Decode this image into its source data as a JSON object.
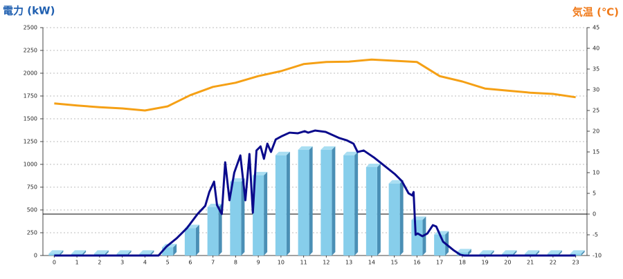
{
  "chart_data": {
    "type": "bar_line",
    "y_label": "電力 (kW)",
    "y2_label": "気温 (℃)",
    "categories": [
      "0",
      "1",
      "2",
      "3",
      "4",
      "5",
      "6",
      "7",
      "8",
      "9",
      "10",
      "11",
      "12",
      "13",
      "14",
      "15",
      "16",
      "17",
      "18",
      "19",
      "20",
      "21",
      "22",
      "23"
    ],
    "ylim": [
      0,
      2500
    ],
    "yticks": [
      0,
      250,
      500,
      750,
      1000,
      1250,
      1500,
      1750,
      2000,
      2250,
      2500
    ],
    "y2lim": [
      -10,
      45
    ],
    "y2ticks": [
      -10,
      -5,
      0,
      5,
      10,
      15,
      20,
      25,
      30,
      35,
      40,
      45
    ],
    "grid": true,
    "reference_line": {
      "axis": "y2",
      "value": 0,
      "color": "#000000"
    },
    "bars": {
      "color": "#87ceeb",
      "side_color": "#4a8fb5",
      "top_color": "#a9def2",
      "values": [
        20,
        20,
        20,
        20,
        20,
        90,
        300,
        530,
        810,
        880,
        1100,
        1160,
        1160,
        1100,
        970,
        790,
        390,
        230,
        35,
        20,
        20,
        20,
        20,
        20
      ]
    },
    "series": [
      {
        "color": "#f5a015",
        "axis": "y2",
        "values": [
          26.7,
          26.2,
          25.8,
          25.5,
          25,
          26,
          28.7,
          30.7,
          31.7,
          33.3,
          34.5,
          36.2,
          36.7,
          36.8,
          37.3,
          37,
          36.7,
          33.3,
          32,
          30.3,
          29.8,
          29.3,
          29,
          28.2
        ]
      },
      {
        "color": "#0a0a8c",
        "axis": "y",
        "x": [
          0,
          4.6,
          4.95,
          5.4,
          5.86,
          6.32,
          6.66,
          6.84,
          7.05,
          7.18,
          7.39,
          7.54,
          7.73,
          7.94,
          8.21,
          8.43,
          8.61,
          8.76,
          8.92,
          9.1,
          9.25,
          9.4,
          9.56,
          9.77,
          10.05,
          10.38,
          10.75,
          11.05,
          11.2,
          11.5,
          11.97,
          12.58,
          12.89,
          13.2,
          13.38,
          13.65,
          14.1,
          14.56,
          15.02,
          15.33,
          15.63,
          15.79,
          15.85,
          15.94,
          16.03,
          16.24,
          16.46,
          16.7,
          16.85,
          17.15,
          17.6,
          17.92,
          18.08,
          23
        ],
        "values": [
          0,
          0,
          98,
          189,
          303,
          455,
          545,
          697,
          811,
          553,
          455,
          1023,
          606,
          909,
          1098,
          606,
          1114,
          470,
          1152,
          1197,
          1061,
          1227,
          1136,
          1273,
          1311,
          1348,
          1341,
          1364,
          1348,
          1371,
          1356,
          1288,
          1265,
          1227,
          1136,
          1152,
          1076,
          985,
          894,
          818,
          682,
          659,
          697,
          227,
          242,
          212,
          242,
          333,
          318,
          152,
          61,
          8,
          0,
          0
        ]
      }
    ]
  }
}
